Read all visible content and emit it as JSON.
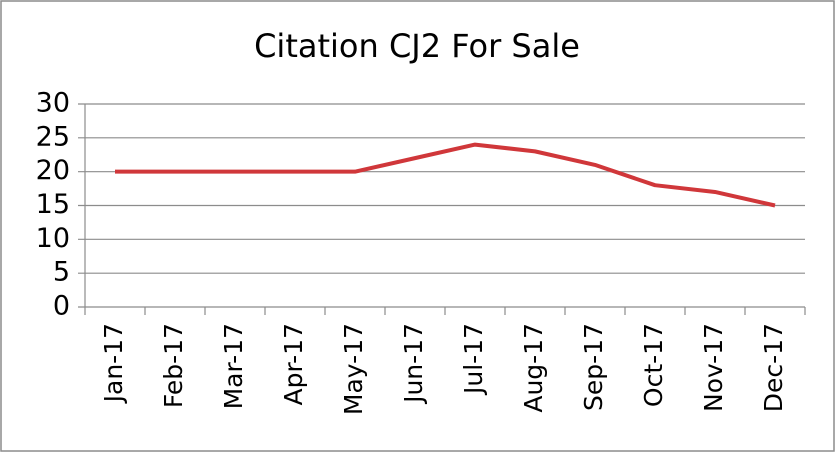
{
  "chart_data": {
    "type": "line",
    "title": "Citation CJ2 For Sale",
    "categories": [
      "Jan-17",
      "Feb-17",
      "Mar-17",
      "Apr-17",
      "May-17",
      "Jun-17",
      "Jul-17",
      "Aug-17",
      "Sep-17",
      "Oct-17",
      "Nov-17",
      "Dec-17"
    ],
    "values": [
      20,
      20,
      20,
      20,
      20,
      22,
      24,
      23,
      21,
      18,
      17,
      15
    ],
    "color": "#d0373a",
    "ylim": [
      0,
      30
    ],
    "yticks": [
      0,
      5,
      10,
      15,
      20,
      25,
      30
    ],
    "grid": true
  }
}
